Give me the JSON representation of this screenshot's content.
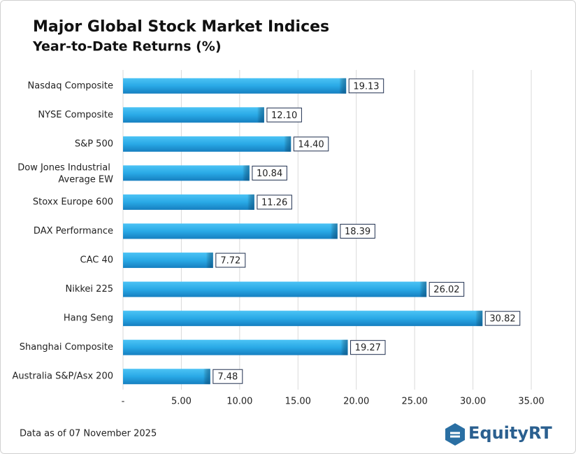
{
  "chart_data": {
    "type": "bar",
    "orientation": "horizontal",
    "title": "Major Global Stock Market Indices",
    "subtitle": "Year-to-Date Returns (%)",
    "categories": [
      "Nasdaq Composite",
      "NYSE Composite",
      "S&P 500",
      "Dow Jones Industrial Average EW",
      "Stoxx Europe 600",
      "DAX Performance",
      "CAC 40",
      "Nikkei 225",
      "Hang Seng",
      "Shanghai Composite",
      "Australia S&P/Asx 200"
    ],
    "values": [
      19.13,
      12.1,
      14.4,
      10.84,
      11.26,
      18.39,
      7.72,
      26.02,
      30.82,
      19.27,
      7.48
    ],
    "value_labels": [
      "19.13",
      "12.10",
      "14.40",
      "10.84",
      "11.26",
      "18.39",
      "7.72",
      "26.02",
      "30.82",
      "19.27",
      "7.48"
    ],
    "color": "#29a9e6",
    "xlim": [
      0,
      35
    ],
    "xticks": [
      {
        "value": 0,
        "label": "-"
      },
      {
        "value": 5,
        "label": "5.00"
      },
      {
        "value": 10,
        "label": "10.00"
      },
      {
        "value": 15,
        "label": "15.00"
      },
      {
        "value": 20,
        "label": "20.00"
      },
      {
        "value": 25,
        "label": "25.00"
      },
      {
        "value": 30,
        "label": "30.00"
      },
      {
        "value": 35,
        "label": "35.00"
      }
    ],
    "grid": true,
    "footnote": "Data as of 07 November 2025",
    "logo": "EquityRT"
  }
}
